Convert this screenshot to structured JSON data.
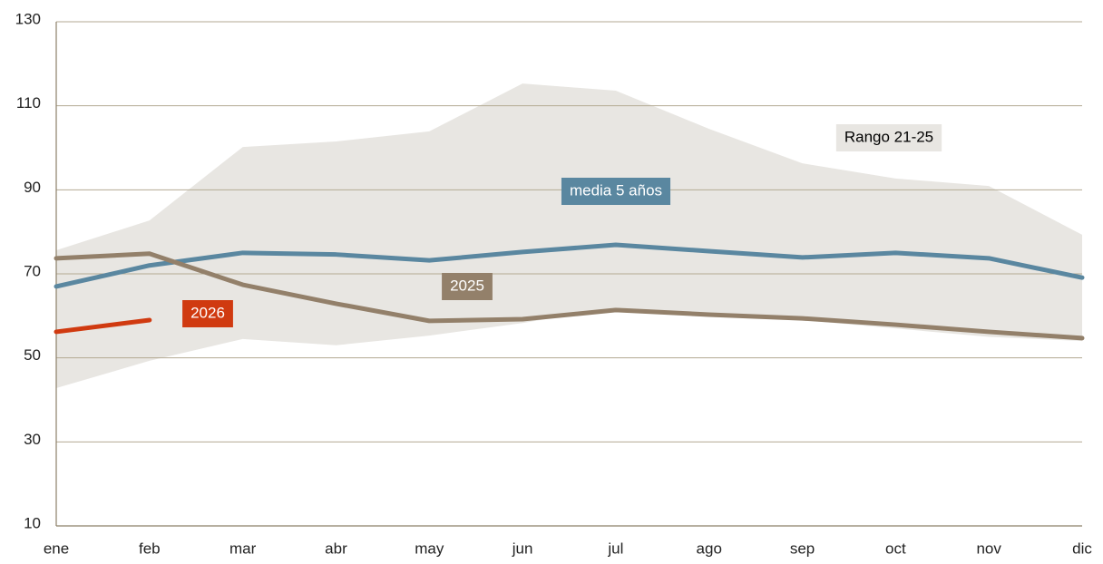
{
  "chart_data": {
    "type": "line",
    "categories": [
      "ene",
      "feb",
      "mar",
      "abr",
      "may",
      "jun",
      "jul",
      "ago",
      "sep",
      "oct",
      "nov",
      "dic"
    ],
    "band": {
      "name": "Rango 21-25",
      "color": "#e8e6e2",
      "upper": [
        75.6,
        82.7,
        100.2,
        101.5,
        103.9,
        115.3,
        113.6,
        104.5,
        96.3,
        92.7,
        90.9,
        79.3
      ],
      "lower": [
        42.8,
        49.3,
        54.5,
        53,
        55.3,
        58.3,
        62,
        60,
        59,
        57,
        55,
        54
      ]
    },
    "series": [
      {
        "name": "media 5 años",
        "color": "#5a87a0",
        "values": [
          67,
          72,
          75,
          74.6,
          73.2,
          75.2,
          76.9,
          75.4,
          73.9,
          75,
          73.7,
          69.1
        ]
      },
      {
        "name": "2025",
        "color": "#93806a",
        "values": [
          73.7,
          74.8,
          67.4,
          62.9,
          58.8,
          59.2,
          61.4,
          60.3,
          59.4,
          57.9,
          56.2,
          54.7
        ]
      },
      {
        "name": "2026",
        "color": "#d03a10",
        "values": [
          56.2,
          59,
          null,
          null,
          null,
          null,
          null,
          null,
          null,
          null,
          null,
          null
        ]
      }
    ],
    "ylim": [
      10,
      130
    ],
    "yticks": [
      10,
      30,
      50,
      70,
      90,
      110,
      130
    ],
    "grid": true
  }
}
